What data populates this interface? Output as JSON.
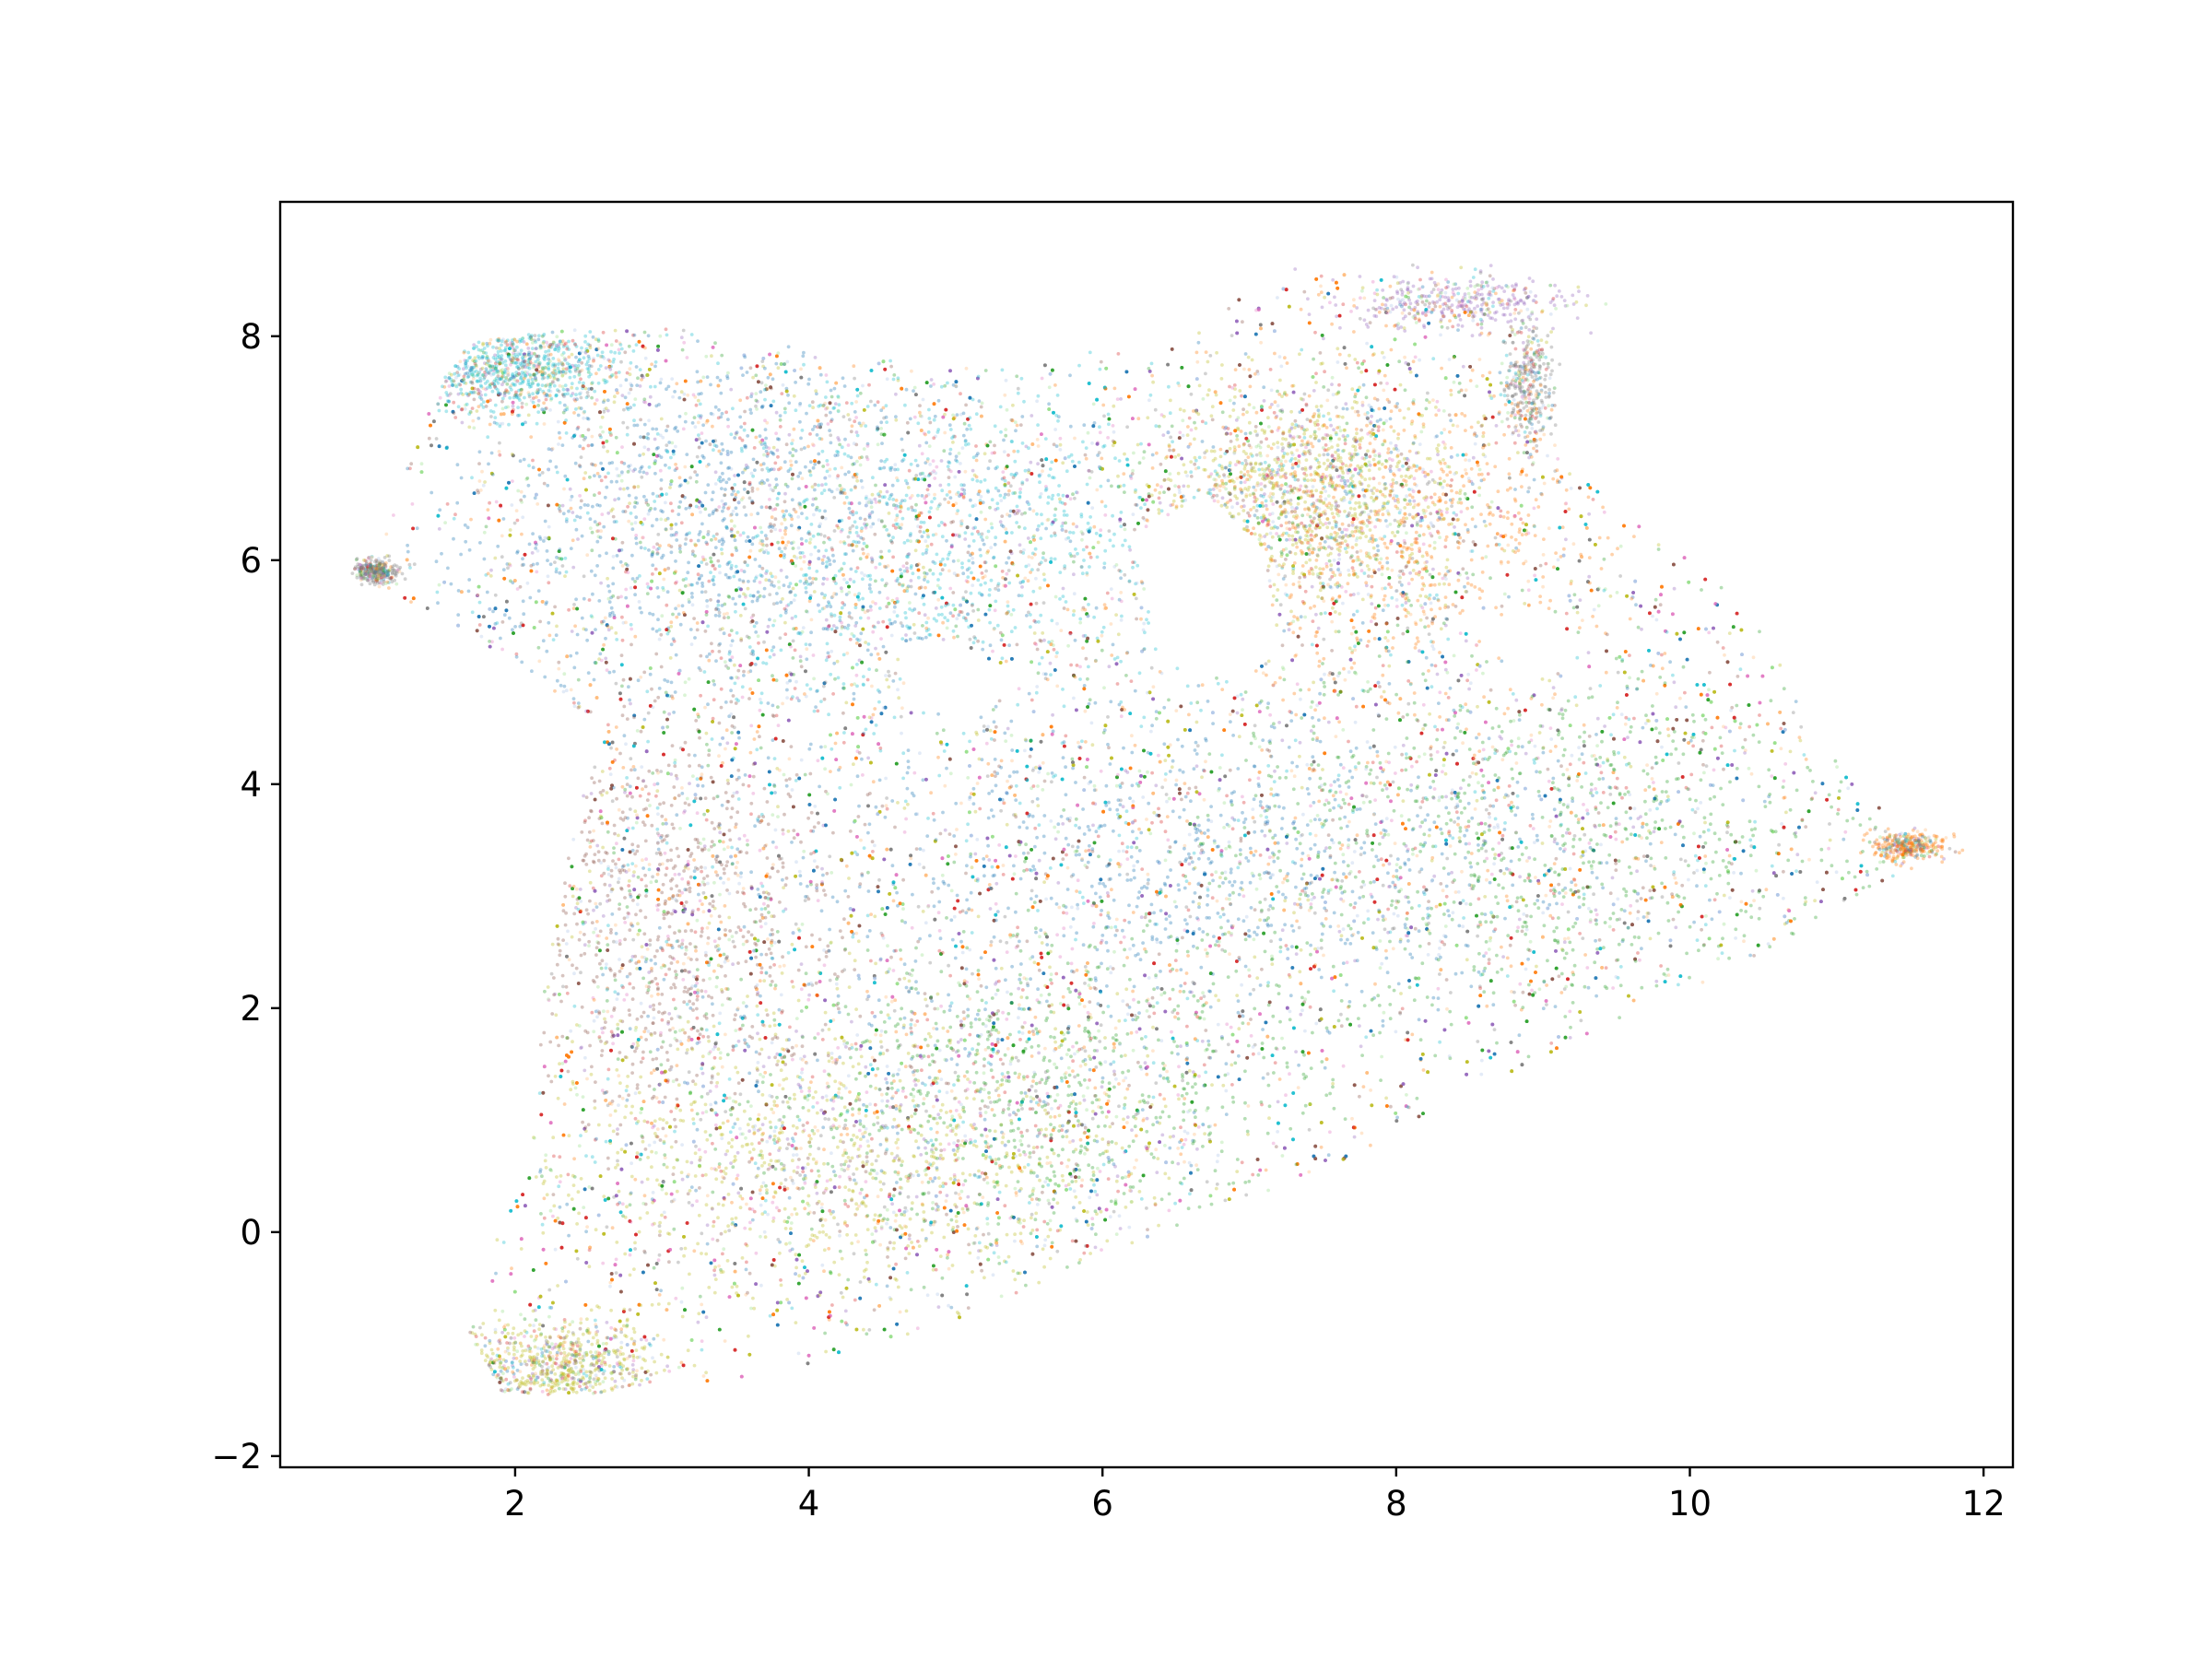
{
  "chart_data": {
    "type": "scatter",
    "title": "",
    "xlabel": "",
    "ylabel": "",
    "xlim": [
      0.4,
      12.2
    ],
    "ylim": [
      -2.1,
      9.2
    ],
    "xticks": [
      2,
      4,
      6,
      8,
      10,
      12
    ],
    "yticks": [
      -2,
      0,
      2,
      4,
      6,
      8
    ],
    "xtick_labels": [
      "2",
      "4",
      "6",
      "8",
      "10",
      "12"
    ],
    "ytick_labels": [
      "−2",
      "0",
      "2",
      "4",
      "6",
      "8"
    ],
    "grid": false,
    "legend": "none",
    "marker_alpha": 0.35,
    "palette": [
      "#1f77b4",
      "#ff7f0e",
      "#2ca02c",
      "#d62728",
      "#9467bd",
      "#8c564b",
      "#e377c2",
      "#7f7f7f",
      "#bcbd22",
      "#17becf",
      "#aec7e8",
      "#98df8a",
      "#ffbb78"
    ],
    "point_cloud": {
      "description_of_extent": "dense cloud of many thousands of small translucent points",
      "outline": [
        [
          1.0,
          5.9
        ],
        [
          1.2,
          6.6
        ],
        [
          1.5,
          7.6
        ],
        [
          1.7,
          7.95
        ],
        [
          2.3,
          8.05
        ],
        [
          3.0,
          8.1
        ],
        [
          4.0,
          7.9
        ],
        [
          5.0,
          7.7
        ],
        [
          6.0,
          7.9
        ],
        [
          6.7,
          8.1
        ],
        [
          7.2,
          8.6
        ],
        [
          7.8,
          8.55
        ],
        [
          8.6,
          8.2
        ],
        [
          8.9,
          7.9
        ],
        [
          9.0,
          7.2
        ],
        [
          9.3,
          6.7
        ],
        [
          9.8,
          6.2
        ],
        [
          10.4,
          5.6
        ],
        [
          10.8,
          4.6
        ],
        [
          11.2,
          3.9
        ],
        [
          11.65,
          3.4
        ],
        [
          11.2,
          3.0
        ],
        [
          10.5,
          2.5
        ],
        [
          9.6,
          1.9
        ],
        [
          8.6,
          1.3
        ],
        [
          7.6,
          0.6
        ],
        [
          6.8,
          0.2
        ],
        [
          6.0,
          -0.2
        ],
        [
          5.2,
          -0.7
        ],
        [
          4.5,
          -1.05
        ],
        [
          3.5,
          -1.35
        ],
        [
          2.5,
          -1.45
        ],
        [
          1.9,
          -1.45
        ],
        [
          1.65,
          -0.8
        ],
        [
          1.8,
          -0.2
        ],
        [
          2.1,
          0.5
        ],
        [
          2.2,
          2.2
        ],
        [
          2.4,
          3.6
        ],
        [
          2.6,
          4.5
        ],
        [
          2.1,
          5.0
        ],
        [
          1.5,
          5.5
        ],
        [
          1.1,
          5.7
        ]
      ],
      "holes": [
        [
          [
            6.2,
            6.2
          ],
          [
            6.7,
            6.6
          ],
          [
            7.1,
            6.1
          ],
          [
            7.2,
            5.2
          ],
          [
            6.9,
            4.9
          ],
          [
            6.4,
            5.1
          ]
        ],
        [
          [
            4.6,
            5.2
          ],
          [
            5.0,
            5.3
          ],
          [
            5.4,
            4.9
          ],
          [
            5.1,
            4.6
          ],
          [
            4.7,
            4.7
          ]
        ],
        [
          [
            8.5,
            5.4
          ],
          [
            9.0,
            5.6
          ],
          [
            9.3,
            5.2
          ],
          [
            8.9,
            4.9
          ]
        ]
      ],
      "dense_regions": [
        {
          "center": [
            2.0,
            7.7
          ],
          "spread": [
            0.35,
            0.2
          ],
          "color": "#17becf",
          "weight": 0.6
        },
        {
          "center": [
            3.3,
            6.4
          ],
          "spread": [
            1.0,
            0.9
          ],
          "color": "#1f77b4",
          "weight": 1.2
        },
        {
          "center": [
            5.0,
            6.2
          ],
          "spread": [
            1.0,
            0.8
          ],
          "color": "#17becf",
          "weight": 1.0
        },
        {
          "center": [
            7.4,
            6.6
          ],
          "spread": [
            0.5,
            0.5
          ],
          "color": "#bcbd22",
          "weight": 0.9
        },
        {
          "center": [
            8.0,
            6.3
          ],
          "spread": [
            0.8,
            0.8
          ],
          "color": "#ff7f0e",
          "weight": 0.8
        },
        {
          "center": [
            3.0,
            2.8
          ],
          "spread": [
            0.6,
            1.0
          ],
          "color": "#8c564b",
          "weight": 0.9
        },
        {
          "center": [
            6.5,
            3.3
          ],
          "spread": [
            1.4,
            0.8
          ],
          "color": "#1f77b4",
          "weight": 1.1
        },
        {
          "center": [
            9.0,
            3.5
          ],
          "spread": [
            1.2,
            0.9
          ],
          "color": "#2ca02c",
          "weight": 1.0
        },
        {
          "center": [
            4.2,
            0.6
          ],
          "spread": [
            1.1,
            0.7
          ],
          "color": "#bcbd22",
          "weight": 1.0
        },
        {
          "center": [
            5.5,
            1.3
          ],
          "spread": [
            1.0,
            0.7
          ],
          "color": "#2ca02c",
          "weight": 0.9
        },
        {
          "center": [
            2.3,
            -1.2
          ],
          "spread": [
            0.35,
            0.2
          ],
          "color": "#bcbd22",
          "weight": 0.5
        },
        {
          "center": [
            1.05,
            5.9
          ],
          "spread": [
            0.07,
            0.05
          ],
          "color": "#7f7f7f",
          "weight": 0.25
        },
        {
          "center": [
            8.4,
            8.3
          ],
          "spread": [
            0.4,
            0.12
          ],
          "color": "#9467bd",
          "weight": 0.3
        },
        {
          "center": [
            8.9,
            7.6
          ],
          "spread": [
            0.08,
            0.25
          ],
          "color": "#7f7f7f",
          "weight": 0.25
        },
        {
          "center": [
            11.5,
            3.45
          ],
          "spread": [
            0.12,
            0.06
          ],
          "color": "#ff7f0e",
          "weight": 0.25
        }
      ]
    }
  }
}
